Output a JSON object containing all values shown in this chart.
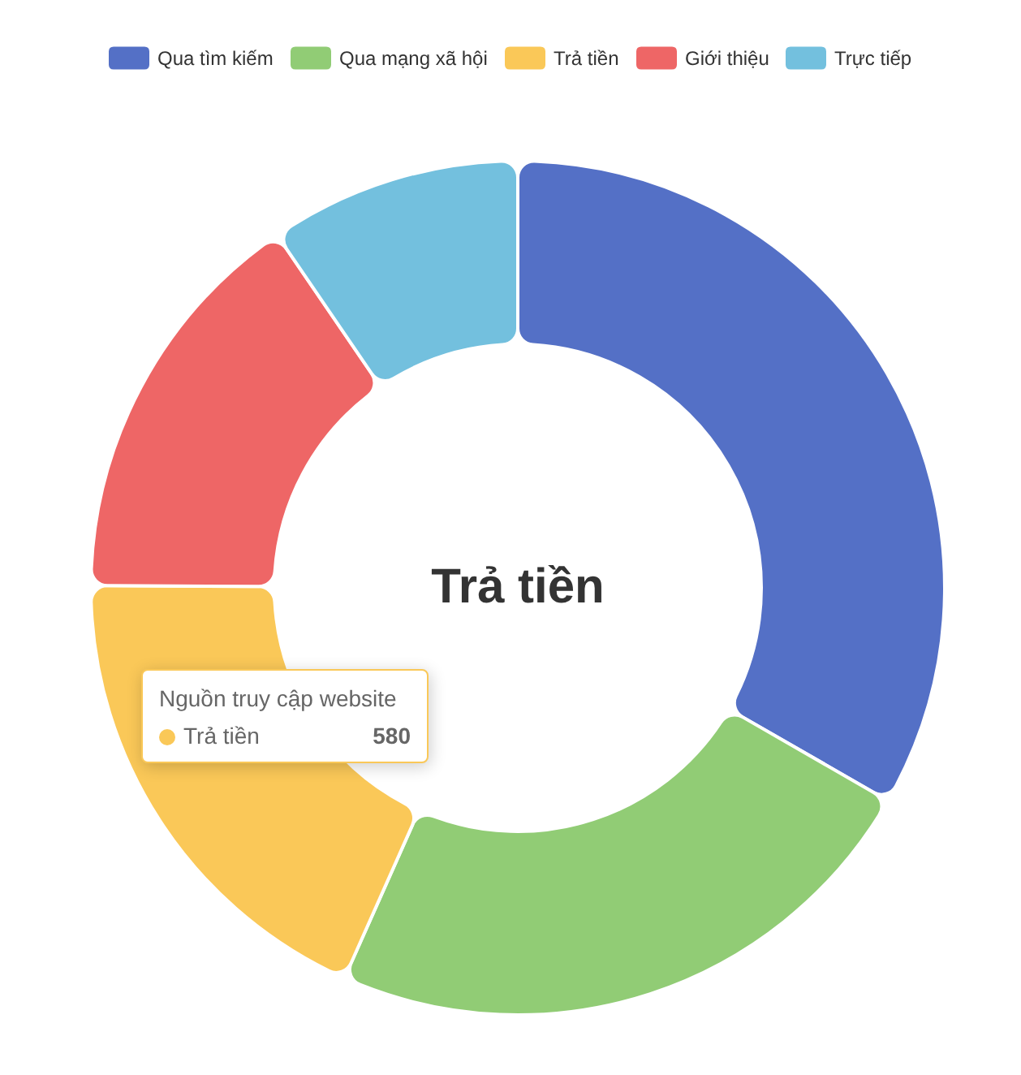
{
  "chart_data": {
    "type": "donut",
    "categories": [
      "Qua tìm kiếm",
      "Qua mạng xã hội",
      "Trả tiền",
      "Giới thiệu",
      "Trực tiếp"
    ],
    "values": [
      1048,
      735,
      580,
      484,
      300
    ],
    "colors": [
      "#5470c6",
      "#91cc75",
      "#fac858",
      "#ee6666",
      "#73c0de"
    ],
    "legend": "top",
    "value_labels": [
      null,
      null,
      "580",
      null,
      null
    ],
    "annotations": [
      "Trả tiền",
      "Nguồn truy cập website"
    ]
  }
}
